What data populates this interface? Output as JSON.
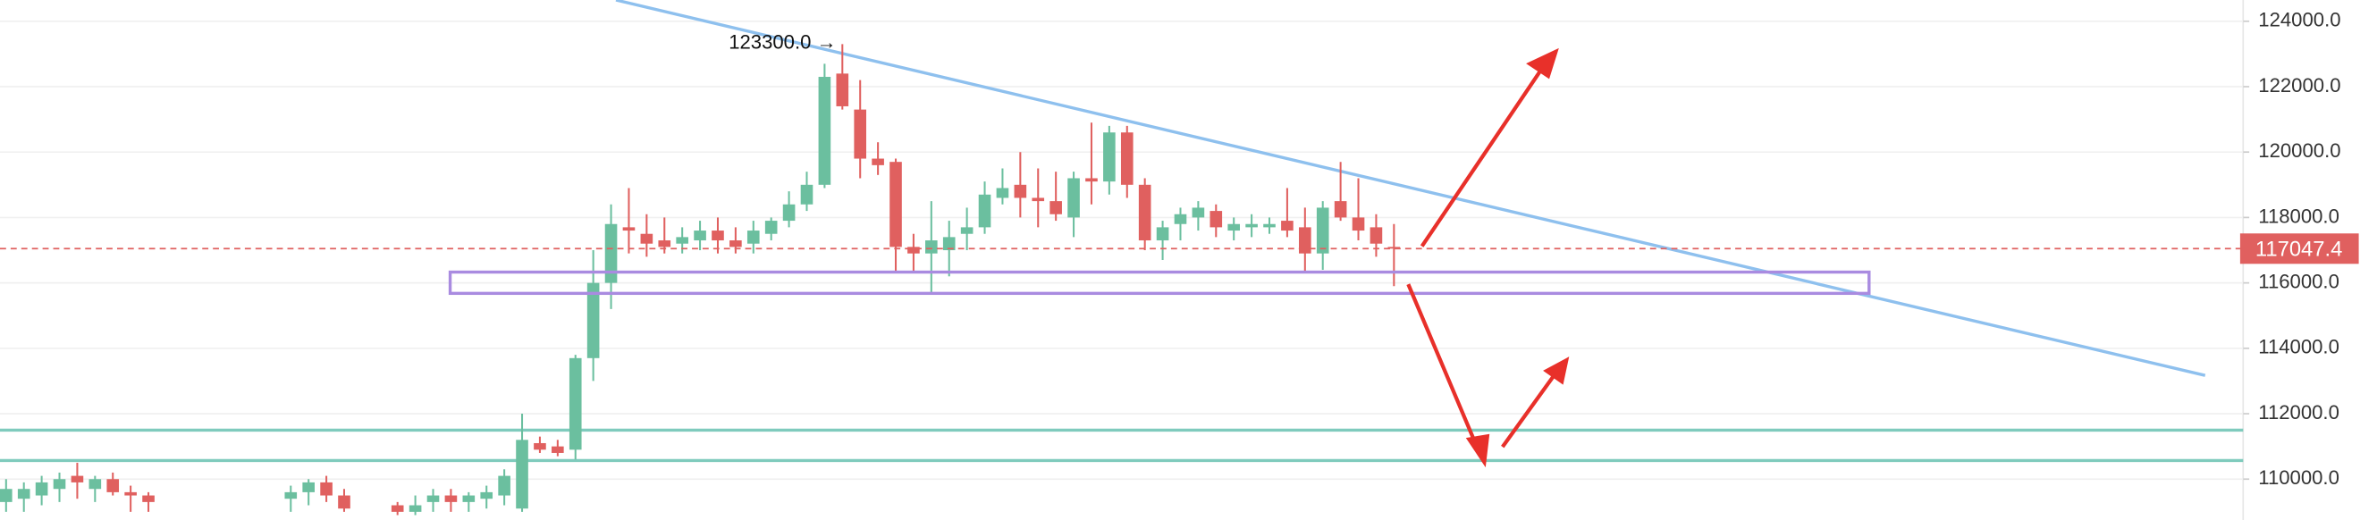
{
  "chart_data": {
    "type": "candlestick",
    "open": [
      109300,
      109400,
      109500,
      109700,
      110100,
      109700,
      110000,
      109600,
      109500,
      null,
      null,
      null,
      null,
      null,
      null,
      null,
      109400,
      109600,
      109900,
      109500,
      null,
      null,
      109200,
      109000,
      109300,
      109500,
      109300,
      109400,
      109500,
      109100,
      111100,
      111000,
      110900,
      113700,
      116000,
      117700,
      117500,
      117300,
      117200,
      117300,
      117600,
      117300,
      117200,
      117500,
      117900,
      118400,
      119000,
      122400,
      121300,
      119800,
      119700,
      117100,
      116900,
      117000,
      117500,
      117700,
      118600,
      119000,
      118600,
      118500,
      118000,
      119200,
      119100,
      120600,
      119000,
      117300,
      117800,
      118000,
      118200,
      117600,
      117700,
      117700,
      117900,
      117700,
      116900,
      118500,
      118000,
      117700,
      117100
    ],
    "high": [
      110000,
      109900,
      110100,
      110200,
      110500,
      110100,
      110200,
      109800,
      109600,
      null,
      null,
      null,
      null,
      null,
      null,
      null,
      109800,
      110000,
      110100,
      109700,
      null,
      null,
      109300,
      109500,
      109700,
      109700,
      109600,
      109800,
      110300,
      112000,
      111300,
      111200,
      113800,
      117000,
      118400,
      118900,
      118100,
      118000,
      117700,
      117900,
      118000,
      117700,
      117900,
      118000,
      118800,
      119400,
      122700,
      123300,
      122200,
      120300,
      119800,
      117500,
      118500,
      117900,
      118300,
      119100,
      119500,
      120000,
      119500,
      119400,
      119400,
      120900,
      120800,
      120800,
      119200,
      117900,
      118300,
      118500,
      118400,
      118000,
      118100,
      118000,
      118900,
      118300,
      118500,
      119700,
      119200,
      118100,
      117800
    ],
    "low": [
      109000,
      109000,
      109200,
      109300,
      109400,
      109300,
      109500,
      109000,
      109000,
      null,
      null,
      null,
      null,
      null,
      null,
      null,
      109000,
      109200,
      109300,
      109000,
      null,
      null,
      108900,
      108900,
      109000,
      109000,
      109000,
      109100,
      109200,
      109000,
      110800,
      110700,
      110600,
      113000,
      115200,
      116900,
      116800,
      116900,
      116900,
      117000,
      116900,
      116900,
      116900,
      117300,
      117700,
      118200,
      118900,
      121300,
      119200,
      119300,
      116300,
      116300,
      115700,
      116200,
      117000,
      117500,
      118400,
      118000,
      117700,
      117900,
      117400,
      118400,
      118700,
      118600,
      117000,
      116700,
      117300,
      117600,
      117400,
      117300,
      117400,
      117500,
      117400,
      116300,
      116400,
      117900,
      117300,
      116800,
      115900
    ],
    "close": [
      109700,
      109700,
      109900,
      110000,
      109900,
      110000,
      109600,
      109500,
      109300,
      null,
      null,
      null,
      null,
      null,
      null,
      null,
      109600,
      109900,
      109500,
      109100,
      null,
      null,
      109000,
      109200,
      109500,
      109300,
      109500,
      109600,
      110100,
      111200,
      110900,
      110800,
      113700,
      116000,
      117800,
      117600,
      117200,
      117100,
      117400,
      117600,
      117300,
      117100,
      117600,
      117900,
      118400,
      119000,
      122300,
      121400,
      119800,
      119600,
      117100,
      116900,
      117300,
      117400,
      117700,
      118700,
      118900,
      118600,
      118500,
      118100,
      119200,
      119100,
      120600,
      119000,
      117300,
      117700,
      118100,
      118300,
      117700,
      117800,
      117800,
      117800,
      117600,
      116900,
      118300,
      118000,
      117600,
      117200,
      117047.4
    ],
    "up_color": "#6bbf9f",
    "down_color": "#e0605f",
    "ylim": [
      108750,
      124650
    ],
    "yticks": [
      {
        "value": 110000,
        "label": "110000.0"
      },
      {
        "value": 112000,
        "label": "112000.0"
      },
      {
        "value": 114000,
        "label": "114000.0"
      },
      {
        "value": 116000,
        "label": "116000.0"
      },
      {
        "value": 118000,
        "label": "118000.0"
      },
      {
        "value": 120000,
        "label": "120000.0"
      },
      {
        "value": 122000,
        "label": "122000.0"
      },
      {
        "value": 124000,
        "label": "124000.0"
      }
    ],
    "grid": true,
    "last_price": {
      "value": 117047.4,
      "label": "117047.4",
      "color": "#e0605f"
    },
    "annotations": [
      {
        "text": "123300.0 →",
        "value": 123300
      }
    ]
  }
}
